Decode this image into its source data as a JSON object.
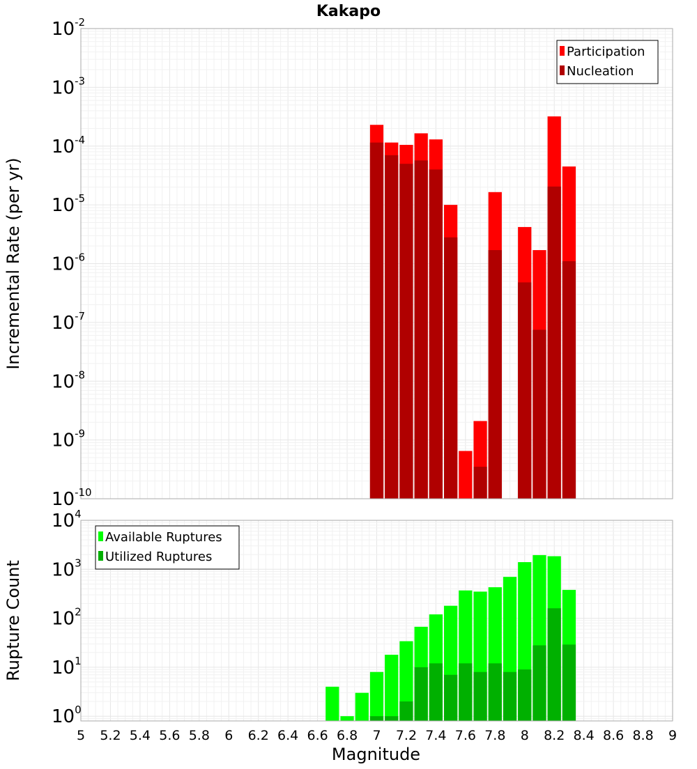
{
  "title": "Kakapo",
  "colors": {
    "participation": "#ff0000",
    "nucleation": "#b00000",
    "available": "#00ff00",
    "utilized": "#00b000",
    "grid_major": "#e6e6e6",
    "grid_minor": "#f1f1f1",
    "frame": "#aaaaaa"
  },
  "chart_data": [
    {
      "type": "bar",
      "title": "Kakapo",
      "xlabel": "",
      "ylabel": "Incremental Rate (per yr)",
      "y_scale": "log",
      "ylim": [
        1e-10,
        0.01
      ],
      "xlim": [
        5,
        9
      ],
      "bar_width": 0.1,
      "legend_position": "top-right",
      "grid": true,
      "x": [
        7.0,
        7.1,
        7.2,
        7.3,
        7.4,
        7.5,
        7.6,
        7.7,
        7.8,
        8.0,
        8.1,
        8.2,
        8.3
      ],
      "series": [
        {
          "name": "Participation",
          "color_key": "participation",
          "values": [
            0.00023,
            0.000115,
            0.000105,
            0.000165,
            0.00013,
            1e-05,
            6.5e-10,
            2.1e-09,
            1.65e-05,
            4.2e-06,
            1.7e-06,
            0.00032,
            4.5e-05
          ]
        },
        {
          "name": "Nucleation",
          "color_key": "nucleation",
          "values": [
            0.000115,
            7e-05,
            5e-05,
            5.7e-05,
            4e-05,
            2.8e-06,
            null,
            3.5e-10,
            1.7e-06,
            4.8e-07,
            7.5e-08,
            2.05e-05,
            1.1e-06
          ]
        }
      ]
    },
    {
      "type": "bar",
      "xlabel": "Magnitude",
      "ylabel": "Rupture Count",
      "y_scale": "log",
      "ylim": [
        0.8,
        10000
      ],
      "xlim": [
        5,
        9
      ],
      "bar_width": 0.1,
      "legend_position": "top-left",
      "grid": true,
      "x": [
        6.7,
        6.8,
        6.9,
        7.0,
        7.1,
        7.2,
        7.3,
        7.4,
        7.5,
        7.6,
        7.7,
        7.8,
        7.9,
        8.0,
        8.1,
        8.2,
        8.3
      ],
      "series": [
        {
          "name": "Available Ruptures",
          "color_key": "available",
          "values": [
            4,
            1,
            3,
            8,
            18,
            34,
            67,
            120,
            180,
            370,
            350,
            430,
            700,
            1400,
            1950,
            1850,
            380
          ]
        },
        {
          "name": "Utilized Ruptures",
          "color_key": "utilized",
          "values": [
            null,
            null,
            null,
            1,
            1,
            2,
            10,
            12,
            7,
            12,
            8,
            12,
            8,
            9,
            28,
            160,
            29
          ]
        }
      ]
    }
  ],
  "x_ticks": [
    "5",
    "5.2",
    "5.4",
    "5.6",
    "5.8",
    "6",
    "6.2",
    "6.4",
    "6.6",
    "6.8",
    "7",
    "7.2",
    "7.4",
    "7.6",
    "7.8",
    "8",
    "8.2",
    "8.4",
    "8.6",
    "8.8",
    "9"
  ],
  "top_y_ticks": [
    {
      "base": "10",
      "exp": "-2"
    },
    {
      "base": "10",
      "exp": "-3"
    },
    {
      "base": "10",
      "exp": "-4"
    },
    {
      "base": "10",
      "exp": "-5"
    },
    {
      "base": "10",
      "exp": "-6"
    },
    {
      "base": "10",
      "exp": "-7"
    },
    {
      "base": "10",
      "exp": "-8"
    },
    {
      "base": "10",
      "exp": "-9"
    },
    {
      "base": "10",
      "exp": "-10"
    }
  ],
  "bottom_y_ticks": [
    {
      "base": "10",
      "exp": "4"
    },
    {
      "base": "10",
      "exp": "3"
    },
    {
      "base": "10",
      "exp": "2"
    },
    {
      "base": "10",
      "exp": "1"
    },
    {
      "base": "10",
      "exp": "0"
    }
  ]
}
